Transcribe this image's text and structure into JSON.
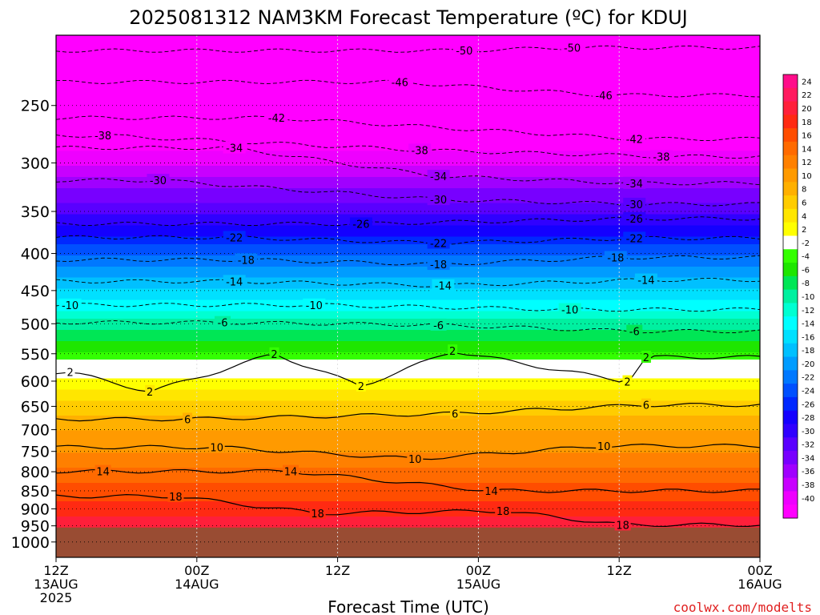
{
  "chart_data": {
    "type": "heatmap",
    "title": "2025081312 NAM3KM Forecast Temperature (ºC) for KDUJ",
    "xlabel": "Forecast Time (UTC)",
    "ylabel": "",
    "y_axis": {
      "scale": "log-pressure",
      "range": [
        1050,
        200
      ],
      "reversed": true,
      "ticks": [
        250,
        300,
        350,
        400,
        450,
        500,
        550,
        600,
        650,
        700,
        750,
        800,
        850,
        900,
        950,
        1000
      ],
      "tick_labels": [
        "250",
        "300",
        "350",
        "400",
        "450",
        "500",
        "550",
        "600",
        "650",
        "700",
        "750",
        "800",
        "850",
        "900",
        "950",
        "1000"
      ]
    },
    "x_axis": {
      "range_hours": [
        0,
        60
      ],
      "ticks": [
        {
          "hour": 0,
          "line1": "12Z",
          "line2": "13AUG",
          "line3": "2025"
        },
        {
          "hour": 12,
          "line1": "00Z",
          "line2": "14AUG",
          "line3": ""
        },
        {
          "hour": 24,
          "line1": "12Z",
          "line2": "",
          "line3": ""
        },
        {
          "hour": 36,
          "line1": "00Z",
          "line2": "15AUG",
          "line3": ""
        },
        {
          "hour": 48,
          "line1": "12Z",
          "line2": "",
          "line3": ""
        },
        {
          "hour": 60,
          "line1": "00Z",
          "line2": "16AUG",
          "line3": ""
        }
      ]
    },
    "colorbar": {
      "labels": [
        "24",
        "22",
        "20",
        "18",
        "16",
        "14",
        "12",
        "10",
        "8",
        "6",
        "4",
        "2",
        "-2",
        "-4",
        "-6",
        "-8",
        "-10",
        "-12",
        "-14",
        "-16",
        "-18",
        "-20",
        "-22",
        "-24",
        "-26",
        "-28",
        "-30",
        "-32",
        "-34",
        "-36",
        "-38",
        "-40"
      ],
      "colors": [
        "#ff0d8a",
        "#ff1a5f",
        "#ff1f3a",
        "#ff2a12",
        "#ff4d00",
        "#ff6a00",
        "#ff8000",
        "#ff9a00",
        "#ffb000",
        "#ffcc00",
        "#ffe600",
        "#ffff00",
        "#ffffff",
        "#33ff00",
        "#1ee600",
        "#00e655",
        "#00f0a0",
        "#00ffd2",
        "#00ffff",
        "#00e0ff",
        "#00c0ff",
        "#009cff",
        "#0078ff",
        "#0050ff",
        "#0028ff",
        "#1400ff",
        "#3000ff",
        "#5a00ff",
        "#7800ff",
        "#a000ff",
        "#c800ff",
        "#ee00ff",
        "#ff00ff"
      ]
    },
    "ground_color": "#994c33",
    "profile": {
      "levels_hpa": [
        200,
        250,
        300,
        350,
        400,
        450,
        500,
        550,
        600,
        650,
        700,
        750,
        800,
        850,
        900,
        950
      ],
      "temperature_c": [
        -54,
        -46,
        -38,
        -30,
        -22,
        -15,
        -9,
        -3,
        3,
        7,
        10,
        12,
        15,
        17,
        19,
        22
      ]
    },
    "contour_labels": [
      {
        "text": "-50",
        "hour": 34.8,
        "p": 210
      },
      {
        "text": "-50",
        "hour": 44.0,
        "p": 208
      },
      {
        "text": "-46",
        "hour": 29.3,
        "p": 232
      },
      {
        "text": "-46",
        "hour": 46.7,
        "p": 242
      },
      {
        "text": "-42",
        "hour": 18.8,
        "p": 260
      },
      {
        "text": "-42",
        "hour": 49.3,
        "p": 278
      },
      {
        "text": "-38",
        "hour": 4.0,
        "p": 275
      },
      {
        "text": "-38",
        "hour": 31.0,
        "p": 288
      },
      {
        "text": "-38",
        "hour": 51.6,
        "p": 294
      },
      {
        "text": "-34",
        "hour": 15.2,
        "p": 286
      },
      {
        "text": "-34",
        "hour": 32.6,
        "p": 313
      },
      {
        "text": "-34",
        "hour": 49.3,
        "p": 320
      },
      {
        "text": "-30",
        "hour": 8.7,
        "p": 317
      },
      {
        "text": "-30",
        "hour": 32.6,
        "p": 337
      },
      {
        "text": "-30",
        "hour": 49.3,
        "p": 342
      },
      {
        "text": "-26",
        "hour": 26.0,
        "p": 364
      },
      {
        "text": "-26",
        "hour": 49.3,
        "p": 358
      },
      {
        "text": "-22",
        "hour": 15.2,
        "p": 380
      },
      {
        "text": "-22",
        "hour": 32.6,
        "p": 387
      },
      {
        "text": "-22",
        "hour": 49.3,
        "p": 381
      },
      {
        "text": "-18",
        "hour": 16.2,
        "p": 408
      },
      {
        "text": "-18",
        "hour": 32.6,
        "p": 414
      },
      {
        "text": "-18",
        "hour": 47.7,
        "p": 405
      },
      {
        "text": "-14",
        "hour": 15.2,
        "p": 437
      },
      {
        "text": "-14",
        "hour": 33.0,
        "p": 443
      },
      {
        "text": "-14",
        "hour": 50.3,
        "p": 435
      },
      {
        "text": "-10",
        "hour": 1.2,
        "p": 471
      },
      {
        "text": "-10",
        "hour": 22.0,
        "p": 471
      },
      {
        "text": "-10",
        "hour": 43.8,
        "p": 478
      },
      {
        "text": "-6",
        "hour": 14.2,
        "p": 498
      },
      {
        "text": "-6",
        "hour": 32.6,
        "p": 502
      },
      {
        "text": "-6",
        "hour": 49.3,
        "p": 512
      },
      {
        "text": "2",
        "hour": 18.6,
        "p": 550
      },
      {
        "text": "2",
        "hour": 33.8,
        "p": 545
      },
      {
        "text": "2",
        "hour": 50.3,
        "p": 556
      },
      {
        "text": "2",
        "hour": 1.2,
        "p": 583
      },
      {
        "text": "2",
        "hour": 8.0,
        "p": 620
      },
      {
        "text": "2",
        "hour": 26.0,
        "p": 609
      },
      {
        "text": "2",
        "hour": 48.7,
        "p": 601
      },
      {
        "text": "6",
        "hour": 11.2,
        "p": 677
      },
      {
        "text": "6",
        "hour": 34.0,
        "p": 665
      },
      {
        "text": "6",
        "hour": 50.3,
        "p": 647
      },
      {
        "text": "10",
        "hour": 13.7,
        "p": 740
      },
      {
        "text": "10",
        "hour": 30.6,
        "p": 768
      },
      {
        "text": "10",
        "hour": 46.7,
        "p": 737
      },
      {
        "text": "14",
        "hour": 4.0,
        "p": 799
      },
      {
        "text": "14",
        "hour": 20.0,
        "p": 799
      },
      {
        "text": "14",
        "hour": 37.1,
        "p": 850
      },
      {
        "text": "18",
        "hour": 10.2,
        "p": 865
      },
      {
        "text": "18",
        "hour": 22.3,
        "p": 913
      },
      {
        "text": "18",
        "hour": 38.1,
        "p": 906
      },
      {
        "text": "18",
        "hour": 48.3,
        "p": 947
      }
    ],
    "grid": true
  },
  "credit": "coolwx.com/modelts"
}
